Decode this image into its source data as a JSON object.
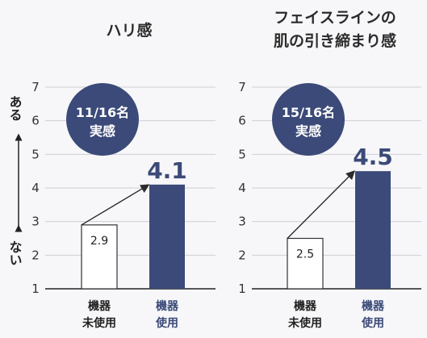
{
  "colors": {
    "accent": "#3b4a78",
    "grid": "#cfcfd4",
    "text": "#2b2b2b"
  },
  "axis": {
    "high_label": "ある",
    "low_label": "ない",
    "arrow_icon": "up-down-arrow-icon"
  },
  "chart_data": [
    {
      "type": "bar",
      "title": "ハリ感",
      "title_lines": [
        "ハリ感"
      ],
      "categories": [
        "機器未使用",
        "機器使用"
      ],
      "category_lines": [
        [
          "機器",
          "未使用"
        ],
        [
          "機器",
          "使用"
        ]
      ],
      "values": [
        2.9,
        4.1
      ],
      "value_labels": [
        "2.9",
        "4.1"
      ],
      "ylim": [
        1,
        7
      ],
      "yticks": [
        1,
        2,
        3,
        4,
        5,
        6,
        7
      ],
      "badge": {
        "line1": "11/16名",
        "line2": "実感"
      },
      "grid": true
    },
    {
      "type": "bar",
      "title": "フェイスラインの肌の引き締まり感",
      "title_lines": [
        "フェイスラインの",
        "肌の引き締まり感"
      ],
      "categories": [
        "機器未使用",
        "機器使用"
      ],
      "category_lines": [
        [
          "機器",
          "未使用"
        ],
        [
          "機器",
          "使用"
        ]
      ],
      "values": [
        2.5,
        4.5
      ],
      "value_labels": [
        "2.5",
        "4.5"
      ],
      "ylim": [
        1,
        7
      ],
      "yticks": [
        1,
        2,
        3,
        4,
        5,
        6,
        7
      ],
      "badge": {
        "line1": "15/16名",
        "line2": "実感"
      },
      "grid": true
    }
  ]
}
